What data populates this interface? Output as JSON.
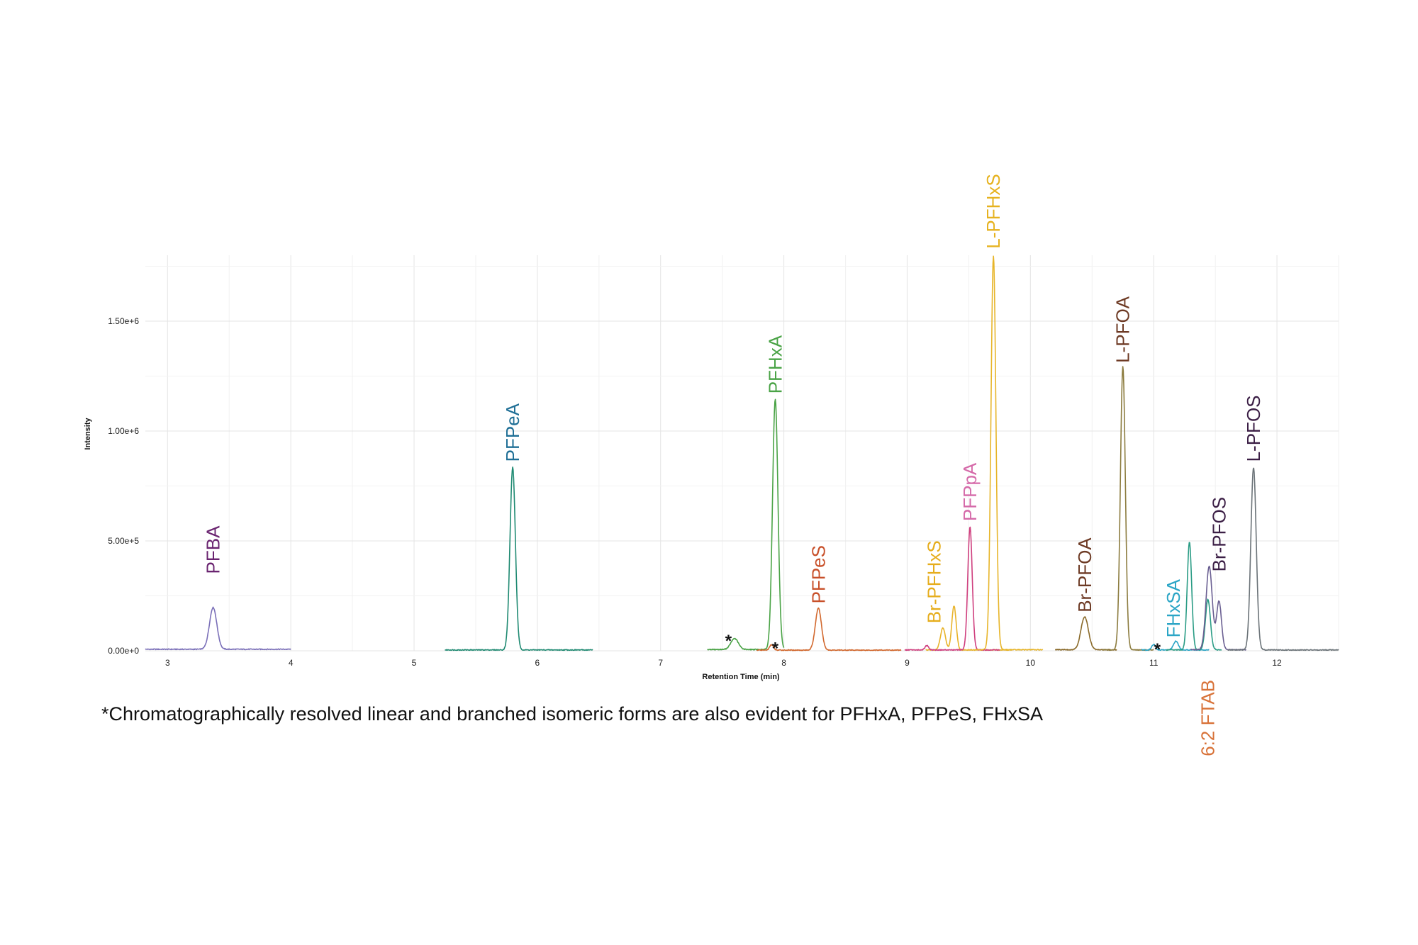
{
  "chart_data": {
    "type": "line",
    "title": "",
    "xlabel": "Retention Time (min)",
    "ylabel": "Intensity",
    "xlim": [
      2.82,
      12.5
    ],
    "ylim": [
      0,
      1800000
    ],
    "x_ticks": [
      3,
      4,
      5,
      6,
      7,
      8,
      9,
      10,
      11,
      12
    ],
    "x_tick_labels": [
      "3",
      "4",
      "5",
      "6",
      "7",
      "8",
      "9",
      "10",
      "11",
      "12"
    ],
    "y_ticks": [
      0,
      500000,
      1000000,
      1500000
    ],
    "y_tick_labels": [
      "0.00e+0",
      "5.00e+5",
      "1.00e+6",
      "1.50e+6"
    ],
    "grid": true,
    "series": [
      {
        "label": "PFBA",
        "color": "#7a6fb8",
        "label_color": "#6a2470",
        "x_range": [
          2.82,
          4.0
        ],
        "baseline": 7000,
        "peaks": [
          {
            "rt": 3.37,
            "height": 190000,
            "width": 0.03
          }
        ]
      },
      {
        "label": "PFPeA",
        "color": "#1f8a72",
        "label_color": "#1f6f96",
        "x_range": [
          5.25,
          6.45
        ],
        "baseline": 4000,
        "peaks": [
          {
            "rt": 5.8,
            "height": 830000,
            "width": 0.022
          }
        ]
      },
      {
        "label": "PFHxA",
        "color": "#4aa346",
        "label_color": "#4aa346",
        "x_range": [
          7.38,
          8.0
        ],
        "baseline": 6000,
        "peaks": [
          {
            "rt": 7.6,
            "height": 50000,
            "width": 0.03
          },
          {
            "rt": 7.93,
            "height": 1140000,
            "width": 0.022
          }
        ]
      },
      {
        "label": "PFPeS",
        "color": "#d2692f",
        "label_color": "#c8502a",
        "x_range": [
          7.78,
          8.95
        ],
        "baseline": 3000,
        "peaks": [
          {
            "rt": 7.9,
            "height": 25000,
            "width": 0.015
          },
          {
            "rt": 8.28,
            "height": 190000,
            "width": 0.025
          }
        ]
      },
      {
        "label": "Br-PFHxS",
        "color": "#e8b32a",
        "label_color": "#e6ad1c",
        "x_range": [
          9.15,
          9.85
        ],
        "baseline": 4000,
        "peaks": [
          {
            "rt": 9.29,
            "height": 100000,
            "width": 0.02
          },
          {
            "rt": 9.38,
            "height": 200000,
            "width": 0.018
          }
        ]
      },
      {
        "label": "PFPpA",
        "color": "#cf3f7e",
        "label_color": "#d56aa9",
        "x_range": [
          8.98,
          9.75
        ],
        "baseline": 4000,
        "peaks": [
          {
            "rt": 9.16,
            "height": 20000,
            "width": 0.015
          },
          {
            "rt": 9.51,
            "height": 560000,
            "width": 0.018
          }
        ]
      },
      {
        "label": "L-PFHxS",
        "color": "#e7b52a",
        "label_color": "#e6b21e",
        "x_range": [
          9.55,
          10.1
        ],
        "baseline": 5000,
        "peaks": [
          {
            "rt": 9.7,
            "height": 1790000,
            "width": 0.02
          }
        ]
      },
      {
        "label": "Br-PFOA",
        "color": "#8a6a2a",
        "label_color": "#6d3a24",
        "x_range": [
          10.2,
          10.7
        ],
        "baseline": 5000,
        "peaks": [
          {
            "rt": 10.44,
            "height": 150000,
            "width": 0.03
          }
        ]
      },
      {
        "label": "L-PFOA",
        "color": "#8c7c3f",
        "label_color": "#6d3a24",
        "x_range": [
          10.58,
          11.0
        ],
        "baseline": 4000,
        "peaks": [
          {
            "rt": 10.75,
            "height": 1290000,
            "width": 0.02
          }
        ]
      },
      {
        "label": "FHxSA",
        "color": "#2aa5c6",
        "label_color": "#2aa5c6",
        "x_range": [
          10.9,
          11.45
        ],
        "baseline": 4000,
        "peaks": [
          {
            "rt": 11.0,
            "height": 25000,
            "width": 0.015
          },
          {
            "rt": 11.18,
            "height": 40000,
            "width": 0.02
          }
        ]
      },
      {
        "label": "6:2 FTAB",
        "color": "#2a9c85",
        "label_color": "#d87238",
        "x_range": [
          11.1,
          11.55
        ],
        "baseline": 4000,
        "peaks": [
          {
            "rt": 11.29,
            "height": 490000,
            "width": 0.018
          },
          {
            "rt": 11.44,
            "height": 230000,
            "width": 0.02
          }
        ]
      },
      {
        "label": "Br-PFOS",
        "color": "#6a5f92",
        "label_color": "#3c1f46",
        "x_range": [
          11.3,
          11.75
        ],
        "baseline": 5000,
        "peaks": [
          {
            "rt": 11.45,
            "height": 380000,
            "width": 0.025
          },
          {
            "rt": 11.53,
            "height": 220000,
            "width": 0.02
          }
        ]
      },
      {
        "label": "L-PFOS",
        "color": "#6b7378",
        "label_color": "#3c1f46",
        "x_range": [
          11.6,
          12.5
        ],
        "baseline": 4000,
        "peaks": [
          {
            "rt": 11.81,
            "height": 830000,
            "width": 0.022
          }
        ]
      }
    ],
    "peak_labels": [
      {
        "text": "PFBA",
        "x": 3.37,
        "base": 350000,
        "color": "#6a2470"
      },
      {
        "text": "PFPeA",
        "x": 5.8,
        "base": 860000,
        "color": "#1f6f96"
      },
      {
        "text": "PFHxA",
        "x": 7.93,
        "base": 1170000,
        "color": "#4aa346"
      },
      {
        "text": "PFPeS",
        "x": 8.28,
        "base": 215000,
        "color": "#c8502a"
      },
      {
        "text": "Br-PFHxS",
        "x": 9.22,
        "base": 125000,
        "color": "#e6ad1c"
      },
      {
        "text": "PFPpA",
        "x": 9.51,
        "base": 590000,
        "color": "#d56aa9"
      },
      {
        "text": "L-PFHxS",
        "x": 9.7,
        "base": 1830000,
        "color": "#e6b21e"
      },
      {
        "text": "Br-PFOA",
        "x": 10.44,
        "base": 175000,
        "color": "#6d3a24"
      },
      {
        "text": "L-PFOA",
        "x": 10.75,
        "base": 1310000,
        "color": "#6d3a24"
      },
      {
        "text": "FHxSA",
        "x": 11.16,
        "base": 60000,
        "color": "#2aa5c6"
      },
      {
        "text": "Br-PFOS",
        "x": 11.53,
        "base": 360000,
        "color": "#3c1f46"
      },
      {
        "text": "L-PFOS",
        "x": 11.81,
        "base": 860000,
        "color": "#3c1f46"
      },
      {
        "text": "6:2 FTAB",
        "x": 11.44,
        "base": -480000,
        "color": "#d87238"
      }
    ],
    "annotations": [
      {
        "text": "*",
        "x": 7.55,
        "y": 20000
      },
      {
        "text": "*",
        "x": 7.93,
        "y": -15000
      },
      {
        "text": "*",
        "x": 11.03,
        "y": -20000
      }
    ]
  },
  "footnote": "*Chromatographically resolved linear and branched isomeric forms are also evident for PFHxA, PFPeS, FHxSA"
}
